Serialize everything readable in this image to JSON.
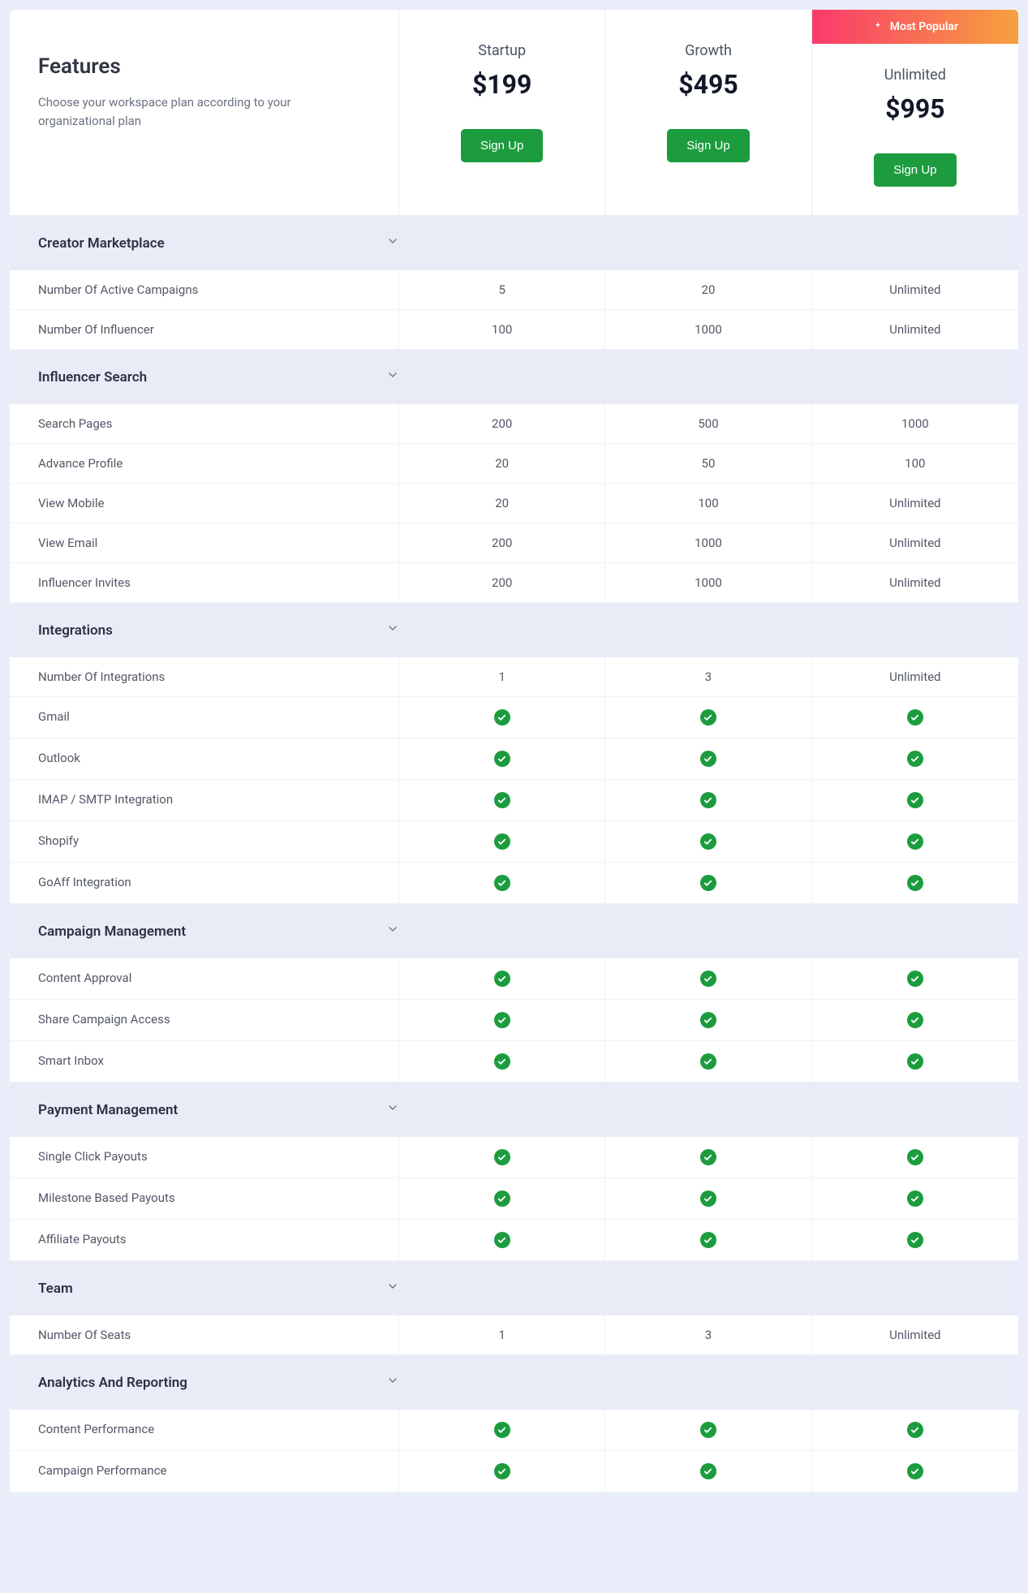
{
  "colors": {
    "page_bg": "#eaeefb",
    "section_bg": "#e9ecf7",
    "border": "#e9ecf5",
    "primary_btn": "#1c9c3e",
    "badge_gradient_from": "#f93a6c",
    "badge_gradient_to": "#f7a13e",
    "text_heading": "#303541",
    "text_body": "#535866",
    "text_muted": "#6b7280",
    "check_bg": "#1c9c3e"
  },
  "intro": {
    "title": "Features",
    "subtitle": "Choose your workspace plan according to your organizational plan"
  },
  "plans": [
    {
      "name": "Startup",
      "price": "$199",
      "cta": "Sign Up",
      "popular": false
    },
    {
      "name": "Growth",
      "price": "$495",
      "cta": "Sign Up",
      "popular": false
    },
    {
      "name": "Unlimited",
      "price": "$995",
      "cta": "Sign Up",
      "popular": true,
      "popular_label": "Most Popular"
    }
  ],
  "sections": [
    {
      "title": "Creator Marketplace",
      "rows": [
        {
          "label": "Number Of Active Campaigns",
          "values": [
            "5",
            "20",
            "Unlimited"
          ]
        },
        {
          "label": "Number Of Influencer",
          "values": [
            "100",
            "1000",
            "Unlimited"
          ]
        }
      ]
    },
    {
      "title": "Influencer Search",
      "rows": [
        {
          "label": "Search Pages",
          "values": [
            "200",
            "500",
            "1000"
          ]
        },
        {
          "label": "Advance Profile",
          "values": [
            "20",
            "50",
            "100"
          ]
        },
        {
          "label": "View Mobile",
          "values": [
            "20",
            "100",
            "Unlimited"
          ]
        },
        {
          "label": "View Email",
          "values": [
            "200",
            "1000",
            "Unlimited"
          ]
        },
        {
          "label": "Influencer Invites",
          "values": [
            "200",
            "1000",
            "Unlimited"
          ]
        }
      ]
    },
    {
      "title": "Integrations",
      "rows": [
        {
          "label": "Number Of Integrations",
          "values": [
            "1",
            "3",
            "Unlimited"
          ]
        },
        {
          "label": "Gmail",
          "values": [
            "check",
            "check",
            "check"
          ]
        },
        {
          "label": "Outlook",
          "values": [
            "check",
            "check",
            "check"
          ]
        },
        {
          "label": "IMAP / SMTP Integration",
          "values": [
            "check",
            "check",
            "check"
          ]
        },
        {
          "label": "Shopify",
          "values": [
            "check",
            "check",
            "check"
          ]
        },
        {
          "label": "GoAff Integration",
          "values": [
            "check",
            "check",
            "check"
          ]
        }
      ]
    },
    {
      "title": "Campaign Management",
      "rows": [
        {
          "label": "Content Approval",
          "values": [
            "check",
            "check",
            "check"
          ]
        },
        {
          "label": "Share Campaign Access",
          "values": [
            "check",
            "check",
            "check"
          ]
        },
        {
          "label": "Smart Inbox",
          "values": [
            "check",
            "check",
            "check"
          ]
        }
      ]
    },
    {
      "title": "Payment Management",
      "rows": [
        {
          "label": "Single Click Payouts",
          "values": [
            "check",
            "check",
            "check"
          ]
        },
        {
          "label": "Milestone Based Payouts",
          "values": [
            "check",
            "check",
            "check"
          ]
        },
        {
          "label": "Affiliate Payouts",
          "values": [
            "check",
            "check",
            "check"
          ]
        }
      ]
    },
    {
      "title": "Team",
      "rows": [
        {
          "label": "Number Of Seats",
          "values": [
            "1",
            "3",
            "Unlimited"
          ]
        }
      ]
    },
    {
      "title": "Analytics And Reporting",
      "rows": [
        {
          "label": "Content Performance",
          "values": [
            "check",
            "check",
            "check"
          ]
        },
        {
          "label": "Campaign Performance",
          "values": [
            "check",
            "check",
            "check"
          ]
        }
      ]
    }
  ]
}
